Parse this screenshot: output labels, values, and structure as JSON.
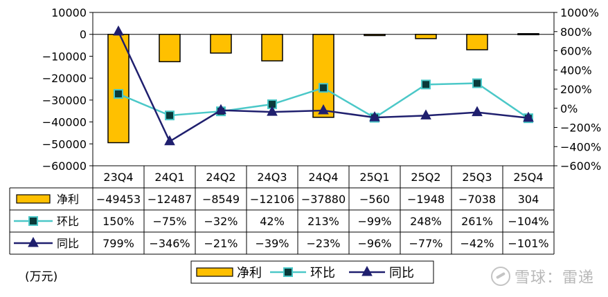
{
  "chart_data": {
    "type": "bar",
    "categories": [
      "23Q4",
      "24Q1",
      "24Q2",
      "24Q3",
      "24Q4",
      "25Q1",
      "25Q2",
      "25Q3",
      "25Q4"
    ],
    "bar_series": {
      "name": "净利",
      "values": [
        -49453,
        -12487,
        -8549,
        -12106,
        -37880,
        -560,
        -1948,
        -7038,
        304
      ],
      "color": "#FFC000"
    },
    "line_series": [
      {
        "name": "环比",
        "values": [
          150,
          -75,
          -32,
          42,
          213,
          -99,
          248,
          261,
          -104
        ],
        "color": "#4BC8C8",
        "marker": "square"
      },
      {
        "name": "同比",
        "values": [
          799,
          -346,
          -21,
          -39,
          -23,
          -96,
          -77,
          -42,
          -101
        ],
        "color": "#1F1F6E",
        "marker": "triangle"
      }
    ],
    "y_left": {
      "min": -60000,
      "max": 10000,
      "step": 10000,
      "ticks": [
        "10000",
        "0",
        "-10000",
        "-20000",
        "-30000",
        "-40000",
        "-50000",
        "-60000"
      ]
    },
    "y_right": {
      "min": -600,
      "max": 1000,
      "step": 200,
      "ticks": [
        "1000%",
        "800%",
        "600%",
        "400%",
        "200%",
        "0%",
        "-200%",
        "-400%",
        "-600%"
      ]
    },
    "table": {
      "rows": [
        {
          "label": "净利",
          "cells": [
            "-49453",
            "-12487",
            "-8549",
            "-12106",
            "-37880",
            "-560",
            "-1948",
            "-7038",
            "304"
          ]
        },
        {
          "label": "环比",
          "cells": [
            "150%",
            "-75%",
            "-32%",
            "42%",
            "213%",
            "-99%",
            "248%",
            "261%",
            "-104%"
          ]
        },
        {
          "label": "同比",
          "cells": [
            "799%",
            "-346%",
            "-21%",
            "-39%",
            "-23%",
            "-96%",
            "-77%",
            "-42%",
            "-101%"
          ]
        }
      ]
    },
    "legend": {
      "position": "bottom",
      "items": [
        "净利",
        "环比",
        "同比"
      ]
    },
    "unit_label": "(万元)",
    "grid": false
  },
  "watermark": "雪球：雷递"
}
